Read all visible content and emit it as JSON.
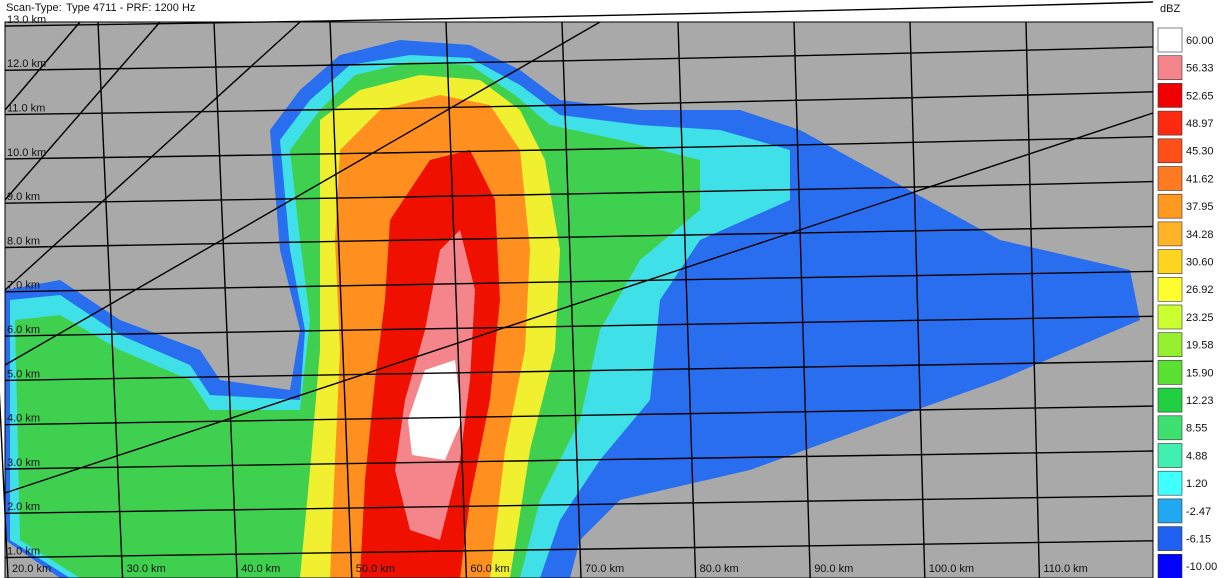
{
  "header": {
    "label": "Scan-Type:",
    "value": "Type 4711 - PRF: 1200 Hz"
  },
  "plot": {
    "height_labels": [
      "13.0 km",
      "12.0 km",
      "11.0 km",
      "10.0 km",
      "9.0 km",
      "8.0 km",
      "7.0 km",
      "6.0 km",
      "5.0 km",
      "4.0 km",
      "3.0 km",
      "2.0 km",
      "1.0 km"
    ],
    "range_labels": [
      "20.0 km",
      "30.0 km",
      "40.0 km",
      "50.0 km",
      "60.0 km",
      "70.0 km",
      "80.0 km",
      "90.0 km",
      "100.0 km",
      "110.0 km"
    ]
  },
  "legend": {
    "unit": "dBZ",
    "levels": [
      {
        "label": "60.00",
        "color": "#ffffff"
      },
      {
        "label": "56.33",
        "color": "#f4858a"
      },
      {
        "label": "52.65",
        "color": "#f00000"
      },
      {
        "label": "48.97",
        "color": "#ff2a10"
      },
      {
        "label": "45.30",
        "color": "#ff5018"
      },
      {
        "label": "41.62",
        "color": "#ff7a20"
      },
      {
        "label": "37.95",
        "color": "#ff9a20"
      },
      {
        "label": "34.28",
        "color": "#ffb428"
      },
      {
        "label": "30.60",
        "color": "#ffd420"
      },
      {
        "label": "26.92",
        "color": "#ffff30"
      },
      {
        "label": "23.25",
        "color": "#ccff30"
      },
      {
        "label": "19.58",
        "color": "#96f030"
      },
      {
        "label": "15.90",
        "color": "#5ae030"
      },
      {
        "label": "12.23",
        "color": "#20d040"
      },
      {
        "label": "8.55",
        "color": "#40e070"
      },
      {
        "label": "4.88",
        "color": "#40f0b0"
      },
      {
        "label": "1.20",
        "color": "#40ffff"
      },
      {
        "label": "-2.47",
        "color": "#20a8f0"
      },
      {
        "label": "-6.15",
        "color": "#2060f0"
      },
      {
        "label": "-10.00",
        "color": "#0000ff"
      }
    ]
  }
}
